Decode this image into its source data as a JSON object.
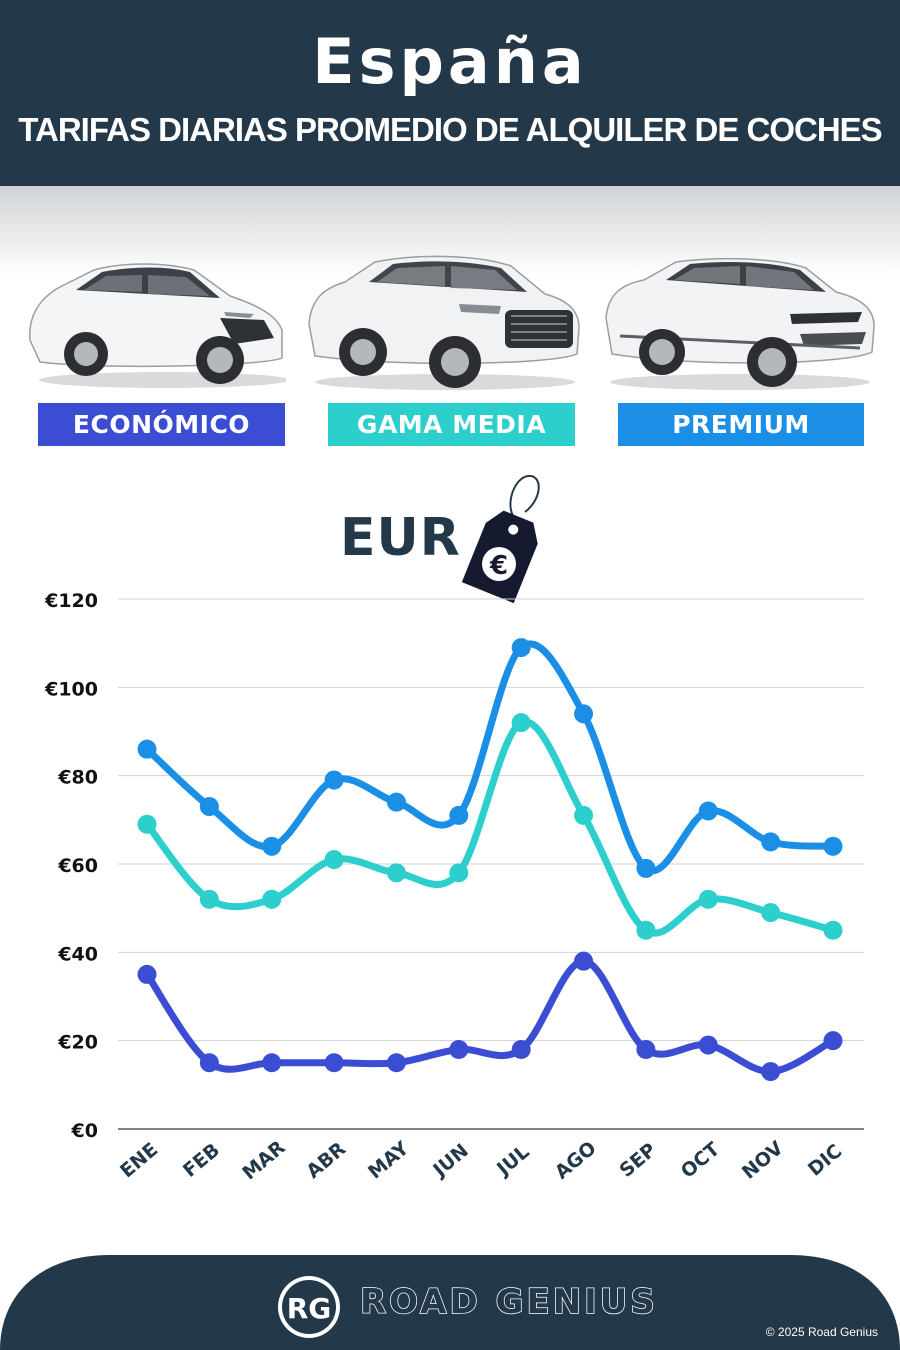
{
  "header": {
    "title": "España",
    "subtitle": "TARIFAS DIARIAS PROMEDIO DE ALQUILER DE COCHES"
  },
  "categories": [
    {
      "label": "ECONÓMICO",
      "color": "#3b4dd3",
      "icon": "hatchback-car-icon"
    },
    {
      "label": "GAMA MEDIA",
      "color": "#2ccfcb",
      "icon": "suv-car-icon"
    },
    {
      "label": "PREMIUM",
      "color": "#1b8fe6",
      "icon": "premium-suv-car-icon"
    }
  ],
  "currency": {
    "label": "EUR",
    "icon": "euro-price-tag-icon",
    "symbol": "€"
  },
  "chart_data": {
    "type": "line",
    "categories": [
      "ENE",
      "FEB",
      "MAR",
      "ABR",
      "MAY",
      "JUN",
      "JUL",
      "AGO",
      "SEP",
      "OCT",
      "NOV",
      "DIC"
    ],
    "series": [
      {
        "name": "PREMIUM",
        "color": "#1b8fe6",
        "values": [
          86,
          73,
          64,
          79,
          74,
          71,
          109,
          94,
          59,
          72,
          65,
          64
        ]
      },
      {
        "name": "GAMA MEDIA",
        "color": "#2ccfcb",
        "values": [
          69,
          52,
          52,
          61,
          58,
          58,
          92,
          71,
          45,
          52,
          49,
          45
        ]
      },
      {
        "name": "ECONÓMICO",
        "color": "#3b4dd3",
        "values": [
          35,
          15,
          15,
          15,
          15,
          18,
          18,
          38,
          18,
          19,
          13,
          20
        ]
      }
    ],
    "ylim": [
      0,
      120
    ],
    "yticks": [
      0,
      20,
      40,
      60,
      80,
      100,
      120
    ],
    "ytick_labels": [
      "€0",
      "€20",
      "€40",
      "€60",
      "€80",
      "€100",
      "€120"
    ],
    "grid": true
  },
  "footer": {
    "logo_text": "RG",
    "brand": "ROAD GENIUS",
    "copyright": "© 2025 Road Genius"
  }
}
